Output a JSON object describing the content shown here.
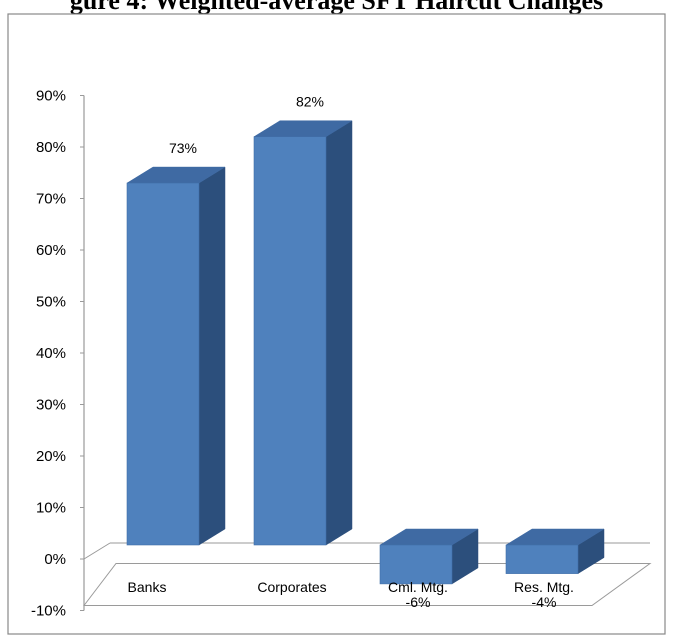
{
  "figure_title": "gure 4: Weighted-average SFT Haircut Changes",
  "chart_data": {
    "type": "bar",
    "title": "gure 4: Weighted-average SFT Haircut Changes",
    "xlabel": "",
    "ylabel": "",
    "categories": [
      "Banks",
      "Corporates",
      "Cml. Mtg.",
      "Res. Mtg."
    ],
    "values": [
      73,
      82,
      -6,
      -4
    ],
    "data_labels": [
      "73%",
      "82%",
      "-6%",
      "-4%"
    ],
    "y_ticks": [
      "-10%",
      "0%",
      "10%",
      "20%",
      "30%",
      "40%",
      "50%",
      "60%",
      "70%",
      "80%",
      "90%"
    ],
    "ylim": [
      -10,
      90
    ],
    "grid": false,
    "legend": "none",
    "style": "3d-column",
    "colors": {
      "front": "#4f81bd",
      "top": "#3f6aa3",
      "side": "#2c4f7c",
      "axis": "#9a9a9a",
      "frame": "#888888"
    }
  }
}
